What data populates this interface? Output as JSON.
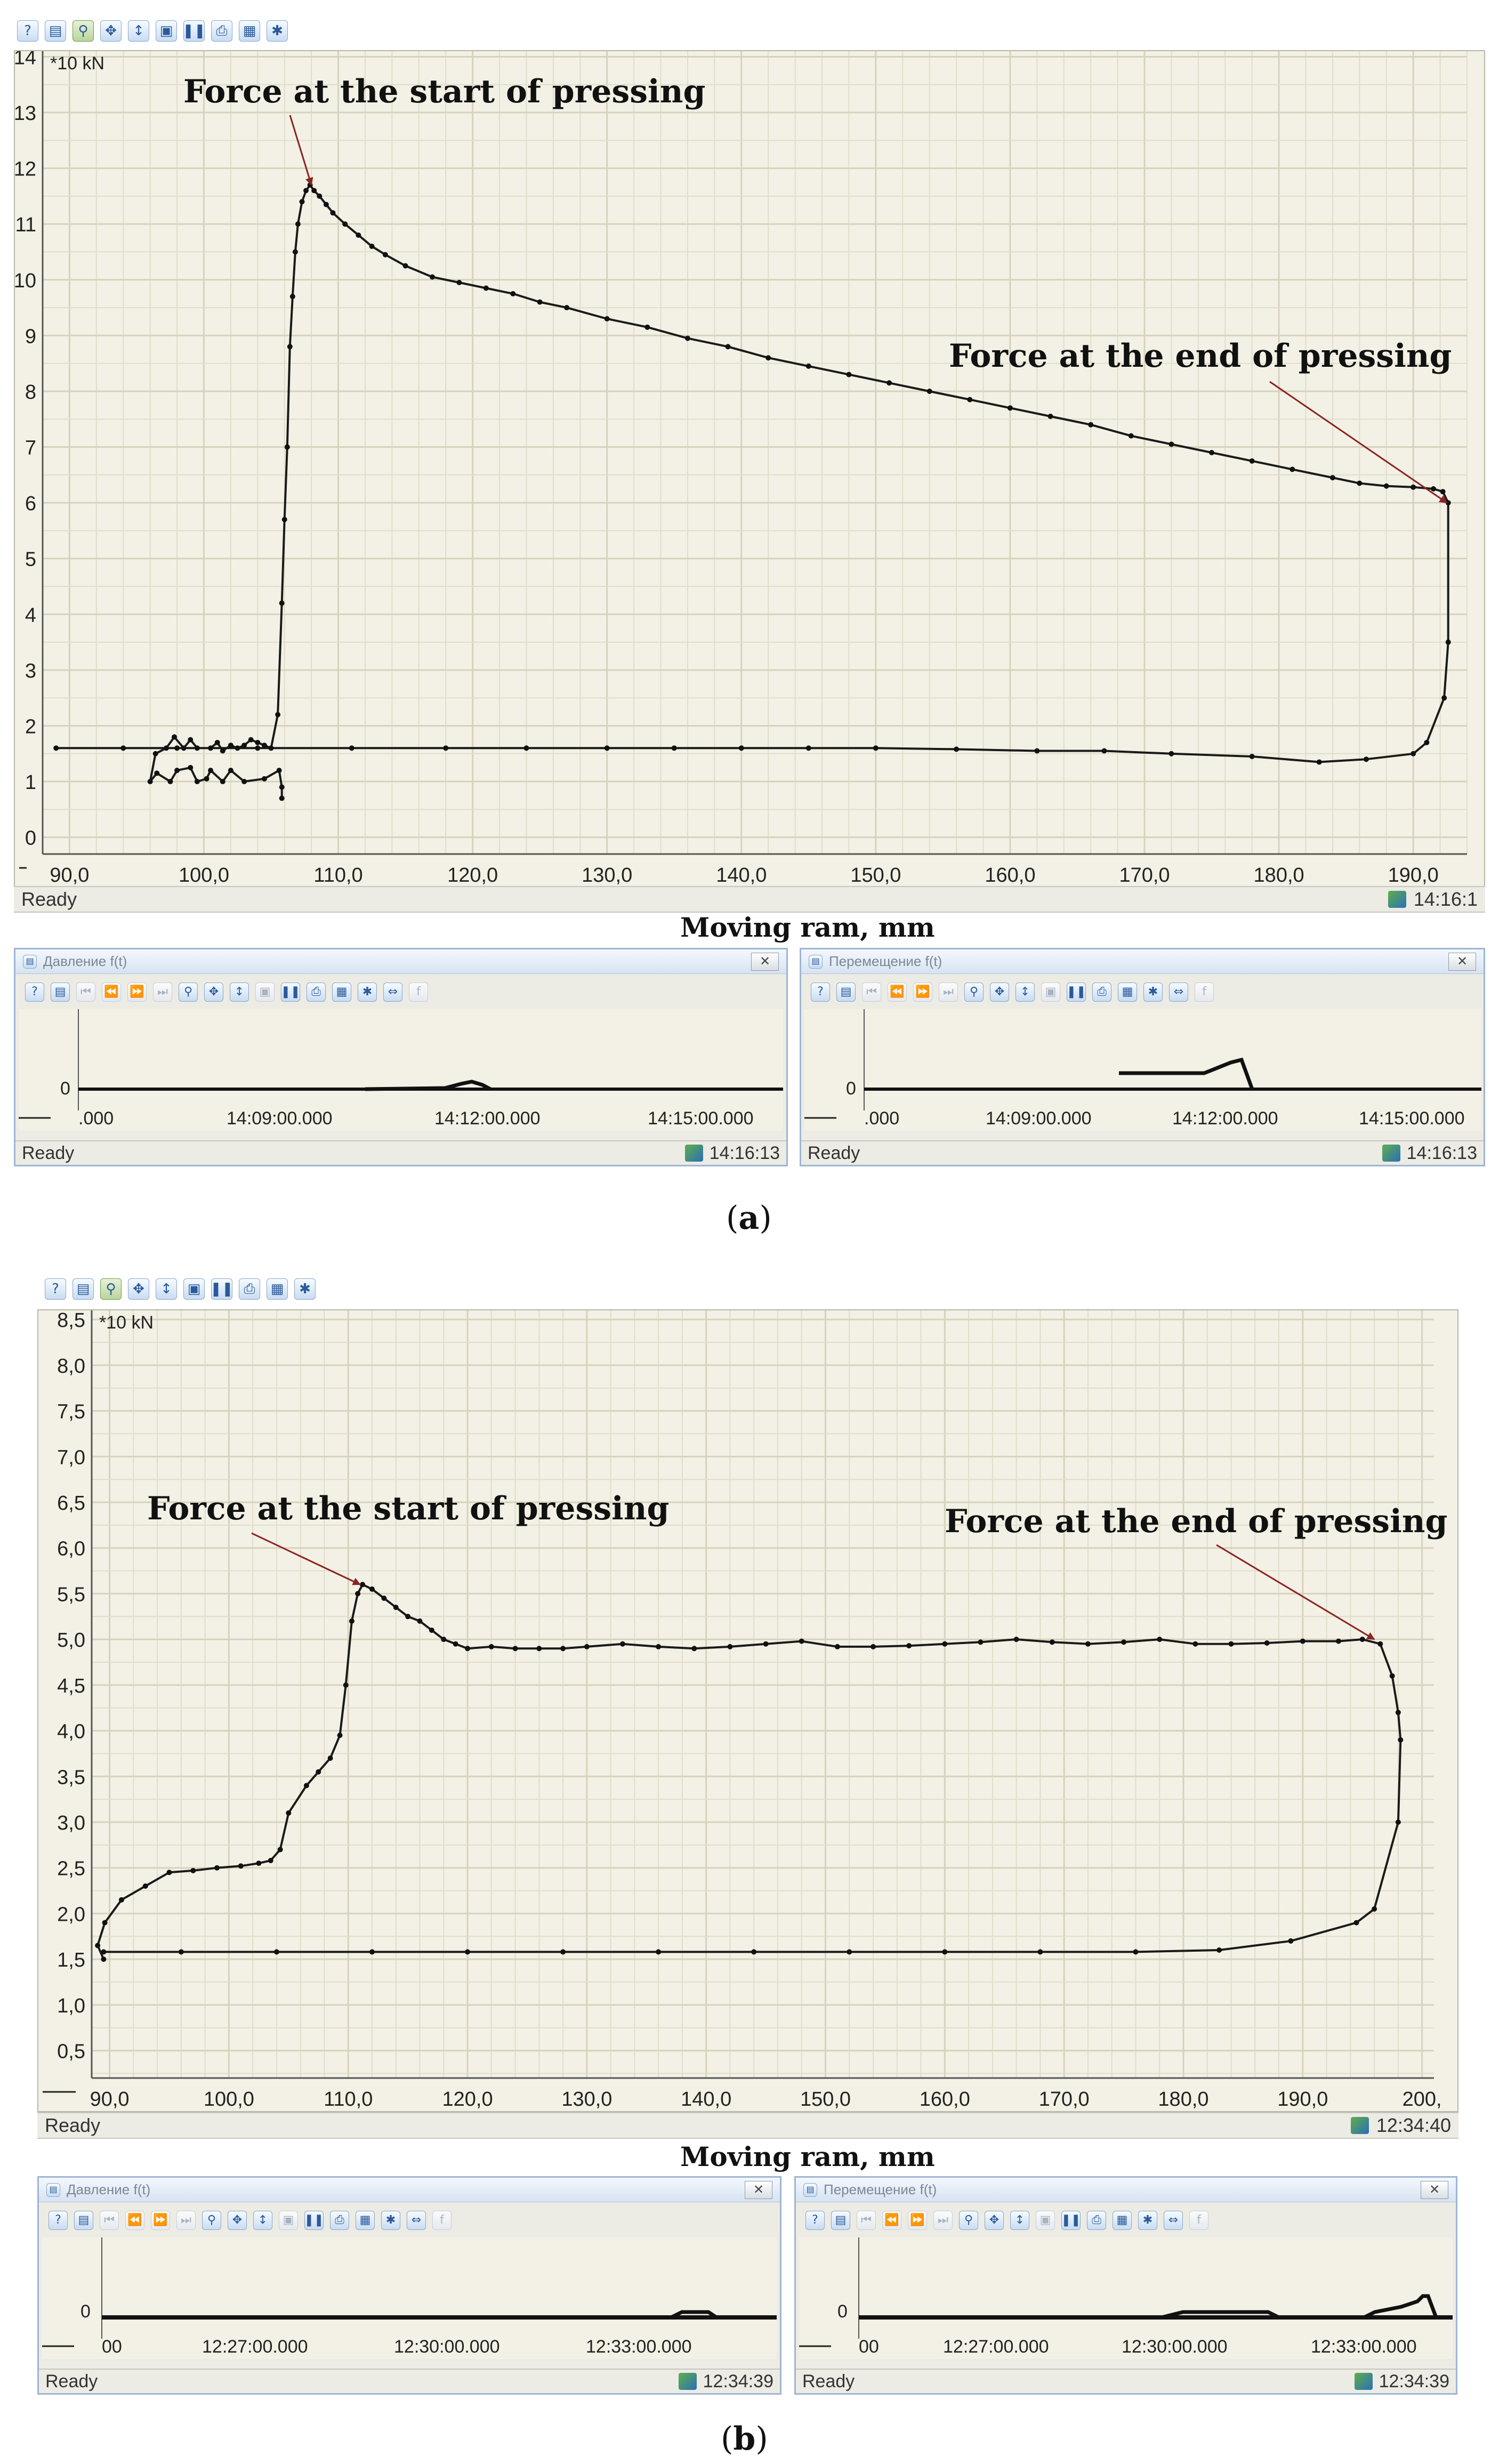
{
  "panel_a": {
    "caption_letter": "a",
    "unit_label": "*10 kN",
    "xlabel": "Moving ram, mm",
    "status_left": "Ready",
    "status_right": "14:16:1",
    "annotation_start": "Force at the start of pressing",
    "annotation_end": "Force at the end of pressing",
    "mini_windows": [
      {
        "title": "Давление f(t)",
        "zero_label": "0",
        "ticks": [
          ".000",
          "14:09:00.000",
          "14:12:00.000",
          "14:15:00.000"
        ],
        "status_left": "Ready",
        "status_right": "14:16:13"
      },
      {
        "title": "Перемещение f(t)",
        "zero_label": "0",
        "ticks": [
          ".000",
          "14:09:00.000",
          "14:12:00.000",
          "14:15:00.000"
        ],
        "status_left": "Ready",
        "status_right": "14:16:13"
      }
    ]
  },
  "panel_b": {
    "caption_letter": "b",
    "unit_label": "*10 kN",
    "xlabel": "Moving ram, mm",
    "status_left": "Ready",
    "status_right": "12:34:40",
    "annotation_start": "Force at the start of pressing",
    "annotation_end": "Force at the end of pressing",
    "mini_windows": [
      {
        "title": "Давление f(t)",
        "zero_label": "0",
        "ticks": [
          "00",
          "12:27:00.000",
          "12:30:00.000",
          "12:33:00.000"
        ],
        "status_left": "Ready",
        "status_right": "12:34:39"
      },
      {
        "title": "Перемещение f(t)",
        "zero_label": "0",
        "ticks": [
          "00",
          "12:27:00.000",
          "12:30:00.000",
          "12:33:00.000"
        ],
        "status_left": "Ready",
        "status_right": "12:34:39"
      }
    ]
  },
  "toolbar_icons": [
    "help-icon",
    "properties-icon",
    "zoom-icon",
    "pan-icon",
    "scale-icon",
    "fit-icon",
    "pause-icon",
    "print-icon",
    "export-icon",
    "settings-icon"
  ],
  "chart_data": [
    {
      "type": "line",
      "title": "",
      "xlabel": "Moving ram, mm",
      "ylabel": "*10 kN",
      "xlim": [
        88,
        194
      ],
      "ylim": [
        -0.3,
        14.1
      ],
      "xticks": [
        "90,0",
        "100,0",
        "110,0",
        "120,0",
        "130,0",
        "140,0",
        "150,0",
        "160,0",
        "170,0",
        "180,0",
        "190,0"
      ],
      "yticks": [
        "0",
        "1",
        "2",
        "3",
        "4",
        "5",
        "6",
        "7",
        "8",
        "9",
        "10",
        "11",
        "12",
        "13",
        "14"
      ],
      "grid": true,
      "series": [
        {
          "x": [
            105.8,
            105.8,
            105.6,
            104.5,
            103.0,
            102.0,
            101.4,
            100.5,
            100.2,
            99.5,
            99.0,
            98.0,
            97.5,
            96.5,
            96.0,
            96.4,
            97.2,
            97.8,
            98.5,
            99.0,
            99.5,
            100.5,
            101.0,
            101.4,
            102.0,
            102.5,
            103.0,
            103.5,
            104.0,
            104.5,
            105.0,
            105.5,
            105.8,
            106.0,
            106.2,
            106.4,
            106.6,
            106.8,
            107.0,
            107.3,
            107.6,
            107.9,
            108.2,
            108.6,
            109.1,
            109.6,
            110.5,
            111.5,
            112.5,
            113.5,
            115.0,
            117.0,
            119.0,
            121.0,
            123.0,
            125.0,
            127.0,
            130.0,
            133.0,
            136.0,
            139.0,
            142.0,
            145.0,
            148.0,
            151.0,
            154.0,
            157.0,
            160.0,
            163.0,
            166.0,
            169.0,
            172.0,
            175.0,
            178.0,
            181.0,
            184.0,
            186.0,
            188.0,
            190.0,
            191.5,
            192.2,
            192.6,
            192.6,
            192.3,
            191.0,
            190.0,
            186.5,
            183.0,
            178.0,
            172.0,
            167.0,
            162.0,
            156.0,
            150.0,
            145.0,
            140.0,
            135.0,
            130.0,
            124.0,
            118.0,
            111.0,
            104.0,
            98.0,
            94.0,
            89.0
          ],
          "y": [
            0.7,
            0.9,
            1.2,
            1.05,
            1.0,
            1.2,
            1.0,
            1.2,
            1.05,
            1.0,
            1.25,
            1.2,
            1.0,
            1.15,
            1.0,
            1.5,
            1.6,
            1.8,
            1.6,
            1.75,
            1.6,
            1.6,
            1.7,
            1.55,
            1.65,
            1.6,
            1.65,
            1.75,
            1.7,
            1.65,
            1.6,
            2.2,
            4.2,
            5.7,
            7.0,
            8.8,
            9.7,
            10.5,
            11.0,
            11.4,
            11.6,
            11.7,
            11.6,
            11.5,
            11.35,
            11.2,
            11.0,
            10.8,
            10.6,
            10.45,
            10.25,
            10.05,
            9.95,
            9.85,
            9.75,
            9.6,
            9.5,
            9.3,
            9.15,
            8.95,
            8.8,
            8.6,
            8.45,
            8.3,
            8.15,
            8.0,
            7.85,
            7.7,
            7.55,
            7.4,
            7.2,
            7.05,
            6.9,
            6.75,
            6.6,
            6.45,
            6.35,
            6.3,
            6.28,
            6.25,
            6.2,
            6.0,
            3.5,
            2.5,
            1.7,
            1.5,
            1.4,
            1.35,
            1.45,
            1.5,
            1.55,
            1.55,
            1.58,
            1.6,
            1.6,
            1.6,
            1.6,
            1.6,
            1.6,
            1.6,
            1.6,
            1.6,
            1.6,
            1.6,
            1.6
          ]
        }
      ]
    },
    {
      "type": "line",
      "title": "",
      "xlabel": "Moving ram, mm",
      "ylabel": "*10 kN",
      "xlim": [
        88.5,
        201
      ],
      "ylim": [
        0.2,
        8.6
      ],
      "xticks": [
        "90,0",
        "100,0",
        "110,0",
        "120,0",
        "130,0",
        "140,0",
        "150,0",
        "160,0",
        "170,0",
        "180,0",
        "190,0",
        "200,"
      ],
      "yticks": [
        "0,5",
        "1,0",
        "1,5",
        "2,0",
        "2,5",
        "3,0",
        "3,5",
        "4,0",
        "4,5",
        "5,0",
        "5,5",
        "6,0",
        "6,5",
        "7,0",
        "7,5",
        "8,0",
        "8,5"
      ],
      "grid": true,
      "series": [
        {
          "x": [
            89.5,
            89.0,
            89.6,
            91.0,
            93.0,
            95.0,
            97.0,
            99.0,
            101.0,
            102.5,
            103.5,
            104.3,
            105.0,
            106.5,
            107.5,
            108.5,
            109.3,
            109.8,
            110.3,
            110.8,
            111.2,
            112.0,
            113.0,
            114.0,
            115.0,
            116.0,
            117.0,
            118.0,
            119.0,
            120.0,
            122.0,
            124.0,
            126.0,
            128.0,
            130.0,
            133.0,
            136.0,
            139.0,
            142.0,
            145.0,
            148.0,
            151.0,
            154.0,
            157.0,
            160.0,
            163.0,
            166.0,
            169.0,
            172.0,
            175.0,
            178.0,
            181.0,
            184.0,
            187.0,
            190.0,
            193.0,
            195.0,
            196.5,
            197.5,
            198.0,
            198.2,
            198.0,
            196.0,
            194.5,
            189.0,
            183.0,
            176.0,
            168.0,
            160.0,
            152.0,
            144.0,
            136.0,
            128.0,
            120.0,
            112.0,
            104.0,
            96.0,
            89.5
          ],
          "y": [
            1.5,
            1.65,
            1.9,
            2.15,
            2.3,
            2.45,
            2.47,
            2.5,
            2.52,
            2.55,
            2.58,
            2.7,
            3.1,
            3.4,
            3.55,
            3.7,
            3.95,
            4.5,
            5.2,
            5.5,
            5.6,
            5.55,
            5.45,
            5.35,
            5.25,
            5.2,
            5.1,
            5.0,
            4.95,
            4.9,
            4.92,
            4.9,
            4.9,
            4.9,
            4.92,
            4.95,
            4.92,
            4.9,
            4.92,
            4.95,
            4.98,
            4.92,
            4.92,
            4.93,
            4.95,
            4.97,
            5.0,
            4.97,
            4.95,
            4.97,
            5.0,
            4.95,
            4.95,
            4.96,
            4.98,
            4.98,
            5.0,
            4.95,
            4.6,
            4.2,
            3.9,
            3.0,
            2.05,
            1.9,
            1.7,
            1.6,
            1.58,
            1.58,
            1.58,
            1.58,
            1.58,
            1.58,
            1.58,
            1.58,
            1.58,
            1.58,
            1.58,
            1.58
          ]
        }
      ]
    }
  ]
}
